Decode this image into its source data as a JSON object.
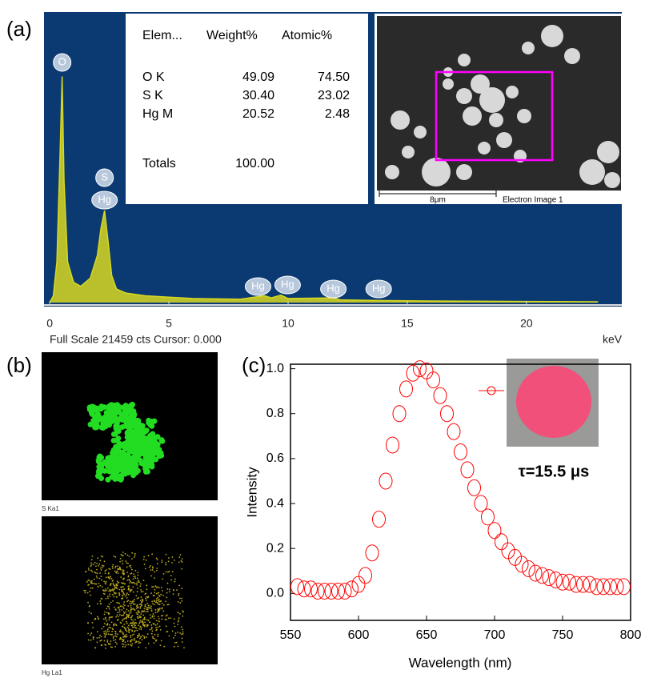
{
  "chart_data": [
    {
      "type": "area",
      "panel_label": "(a)",
      "color": "#d8d820",
      "x": [
        0,
        0.15,
        0.3,
        0.45,
        0.52,
        0.6,
        0.75,
        1.0,
        1.3,
        1.7,
        2.0,
        2.15,
        2.3,
        2.45,
        2.6,
        2.8,
        3.2,
        4,
        5,
        6,
        8,
        9.0,
        9.3,
        9.7,
        10,
        11.9,
        12.2,
        14,
        16,
        20,
        23
      ],
      "values": [
        0,
        500,
        3000,
        12000,
        16700,
        9000,
        3000,
        1500,
        1200,
        1800,
        3500,
        5500,
        6800,
        4500,
        2000,
        1000,
        700,
        500,
        400,
        300,
        250,
        500,
        350,
        550,
        300,
        350,
        200,
        150,
        120,
        80,
        60
      ],
      "xlim": [
        -0.24,
        24.0
      ],
      "ylim": [
        0,
        21459
      ],
      "xticks": [
        0,
        5,
        10,
        15,
        20
      ],
      "xlabel": "keV",
      "status": "Full Scale 21459 cts Cursor: 0.000",
      "peak_labels": [
        {
          "text": "O",
          "x": 0.52
        },
        {
          "text": "S",
          "x": 2.3
        },
        {
          "text": "Hg",
          "x": 2.3
        },
        {
          "text": "Hg",
          "x": 8.74
        },
        {
          "text": "Hg",
          "x": 9.98
        },
        {
          "text": "Hg",
          "x": 11.9
        },
        {
          "text": "Hg",
          "x": 13.8
        }
      ],
      "table": {
        "header": [
          "Elem...",
          "Weight%",
          "Atomic%"
        ],
        "rows": [
          [
            "O K",
            "49.09",
            "74.50"
          ],
          [
            "S K",
            "30.40",
            "23.02"
          ],
          [
            "Hg M",
            "20.52",
            "2.48"
          ]
        ],
        "totals": [
          "Totals",
          "100.00"
        ]
      },
      "image": {
        "scale_bar": "8μm",
        "caption": "Electron Image 1"
      }
    },
    {
      "type": "line",
      "panel_label": "(c)",
      "color": "#ff0000",
      "x": [
        555,
        560,
        565,
        570,
        575,
        580,
        585,
        590,
        595,
        600,
        605,
        610,
        615,
        620,
        625,
        630,
        635,
        640,
        645,
        650,
        655,
        660,
        665,
        670,
        675,
        680,
        685,
        690,
        695,
        700,
        705,
        710,
        715,
        720,
        725,
        730,
        735,
        740,
        745,
        750,
        755,
        760,
        765,
        770,
        775,
        780,
        785,
        790,
        795
      ],
      "values": [
        0.03,
        0.02,
        0.02,
        0.01,
        0.01,
        0.01,
        0.01,
        0.01,
        0.02,
        0.04,
        0.08,
        0.18,
        0.33,
        0.5,
        0.66,
        0.8,
        0.91,
        0.98,
        1.0,
        0.99,
        0.95,
        0.88,
        0.8,
        0.72,
        0.63,
        0.55,
        0.47,
        0.4,
        0.34,
        0.28,
        0.23,
        0.19,
        0.16,
        0.13,
        0.11,
        0.09,
        0.08,
        0.07,
        0.06,
        0.05,
        0.05,
        0.04,
        0.04,
        0.04,
        0.03,
        0.03,
        0.03,
        0.03,
        0.03
      ],
      "xlim": [
        550,
        800
      ],
      "ylim": [
        -0.12,
        1.02
      ],
      "xticks": [
        550,
        600,
        650,
        700,
        750,
        800
      ],
      "yticks": [
        {
          "value": 0,
          "label": "0.0"
        },
        0.2,
        0.4,
        0.6,
        0.8,
        {
          "value": 1,
          "label": "1.0"
        }
      ],
      "xlabel": "Wavelength (nm)",
      "ylabel": "Intensity",
      "annotation": "τ=15.5 μs"
    }
  ],
  "maps": {
    "panel_label": "(b)",
    "labels": [
      "S Ka1",
      "Hg La1"
    ]
  }
}
